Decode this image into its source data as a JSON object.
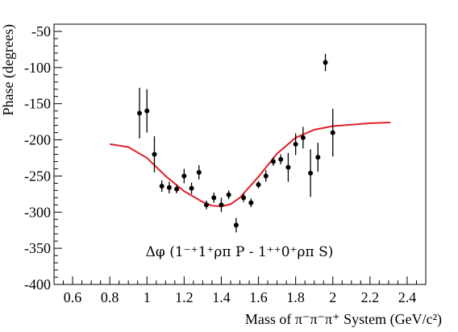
{
  "chart_data": {
    "type": "scatter",
    "title": "",
    "xlabel": "Mass of π⁻π⁻π⁺ System (GeV/c²)",
    "ylabel": "Phase (degrees)",
    "xlim": [
      0.5,
      2.5
    ],
    "ylim": [
      -400,
      -40
    ],
    "xticks": [
      {
        "v": 0.6,
        "label": "0.6"
      },
      {
        "v": 0.8,
        "label": "0.8"
      },
      {
        "v": 1.0,
        "label": "1"
      },
      {
        "v": 1.2,
        "label": "1.2"
      },
      {
        "v": 1.4,
        "label": "1.4"
      },
      {
        "v": 1.6,
        "label": "1.6"
      },
      {
        "v": 1.8,
        "label": "1.8"
      },
      {
        "v": 2.0,
        "label": "2"
      },
      {
        "v": 2.2,
        "label": "2.2"
      },
      {
        "v": 2.4,
        "label": "2.4"
      }
    ],
    "yticks": [
      {
        "v": -50,
        "label": "-50"
      },
      {
        "v": -100,
        "label": "-100"
      },
      {
        "v": -150,
        "label": "-150"
      },
      {
        "v": -200,
        "label": "-200"
      },
      {
        "v": -250,
        "label": "-250"
      },
      {
        "v": -300,
        "label": "-300"
      },
      {
        "v": -350,
        "label": "-350"
      },
      {
        "v": -400,
        "label": "-400"
      }
    ],
    "annotation": "Δφ (1⁻⁺1⁺ρπ P - 1⁺⁺0⁺ρπ S)",
    "points": [
      {
        "x": 0.96,
        "y": -163,
        "err": 35
      },
      {
        "x": 1.0,
        "y": -160,
        "err": 30
      },
      {
        "x": 1.04,
        "y": -220,
        "err": 25
      },
      {
        "x": 1.08,
        "y": -264,
        "err": 8
      },
      {
        "x": 1.12,
        "y": -266,
        "err": 8
      },
      {
        "x": 1.16,
        "y": -268,
        "err": 6
      },
      {
        "x": 1.2,
        "y": -250,
        "err": 10
      },
      {
        "x": 1.24,
        "y": -267,
        "err": 8
      },
      {
        "x": 1.28,
        "y": -245,
        "err": 10
      },
      {
        "x": 1.32,
        "y": -290,
        "err": 6
      },
      {
        "x": 1.36,
        "y": -280,
        "err": 7
      },
      {
        "x": 1.4,
        "y": -290,
        "err": 10
      },
      {
        "x": 1.44,
        "y": -276,
        "err": 6
      },
      {
        "x": 1.48,
        "y": -318,
        "err": 10
      },
      {
        "x": 1.52,
        "y": -280,
        "err": 6
      },
      {
        "x": 1.56,
        "y": -287,
        "err": 6
      },
      {
        "x": 1.6,
        "y": -262,
        "err": 5
      },
      {
        "x": 1.64,
        "y": -250,
        "err": 8
      },
      {
        "x": 1.68,
        "y": -230,
        "err": 6
      },
      {
        "x": 1.72,
        "y": -227,
        "err": 7
      },
      {
        "x": 1.76,
        "y": -238,
        "err": 20
      },
      {
        "x": 1.8,
        "y": -206,
        "err": 15
      },
      {
        "x": 1.84,
        "y": -197,
        "err": 15
      },
      {
        "x": 1.88,
        "y": -246,
        "err": 33
      },
      {
        "x": 1.92,
        "y": -224,
        "err": 20
      },
      {
        "x": 1.96,
        "y": -93,
        "err": 12
      },
      {
        "x": 2.0,
        "y": -190,
        "err": 33
      }
    ],
    "fit": {
      "color": "#e0202a",
      "x": [
        0.8,
        0.9,
        1.0,
        1.1,
        1.2,
        1.3,
        1.35,
        1.4,
        1.45,
        1.5,
        1.6,
        1.7,
        1.8,
        1.9,
        2.0,
        2.1,
        2.2,
        2.31
      ],
      "y": [
        -206,
        -210,
        -225,
        -250,
        -271,
        -286,
        -291,
        -292,
        -289,
        -280,
        -251,
        -219,
        -197,
        -186,
        -181,
        -179,
        -177,
        -176
      ]
    }
  }
}
